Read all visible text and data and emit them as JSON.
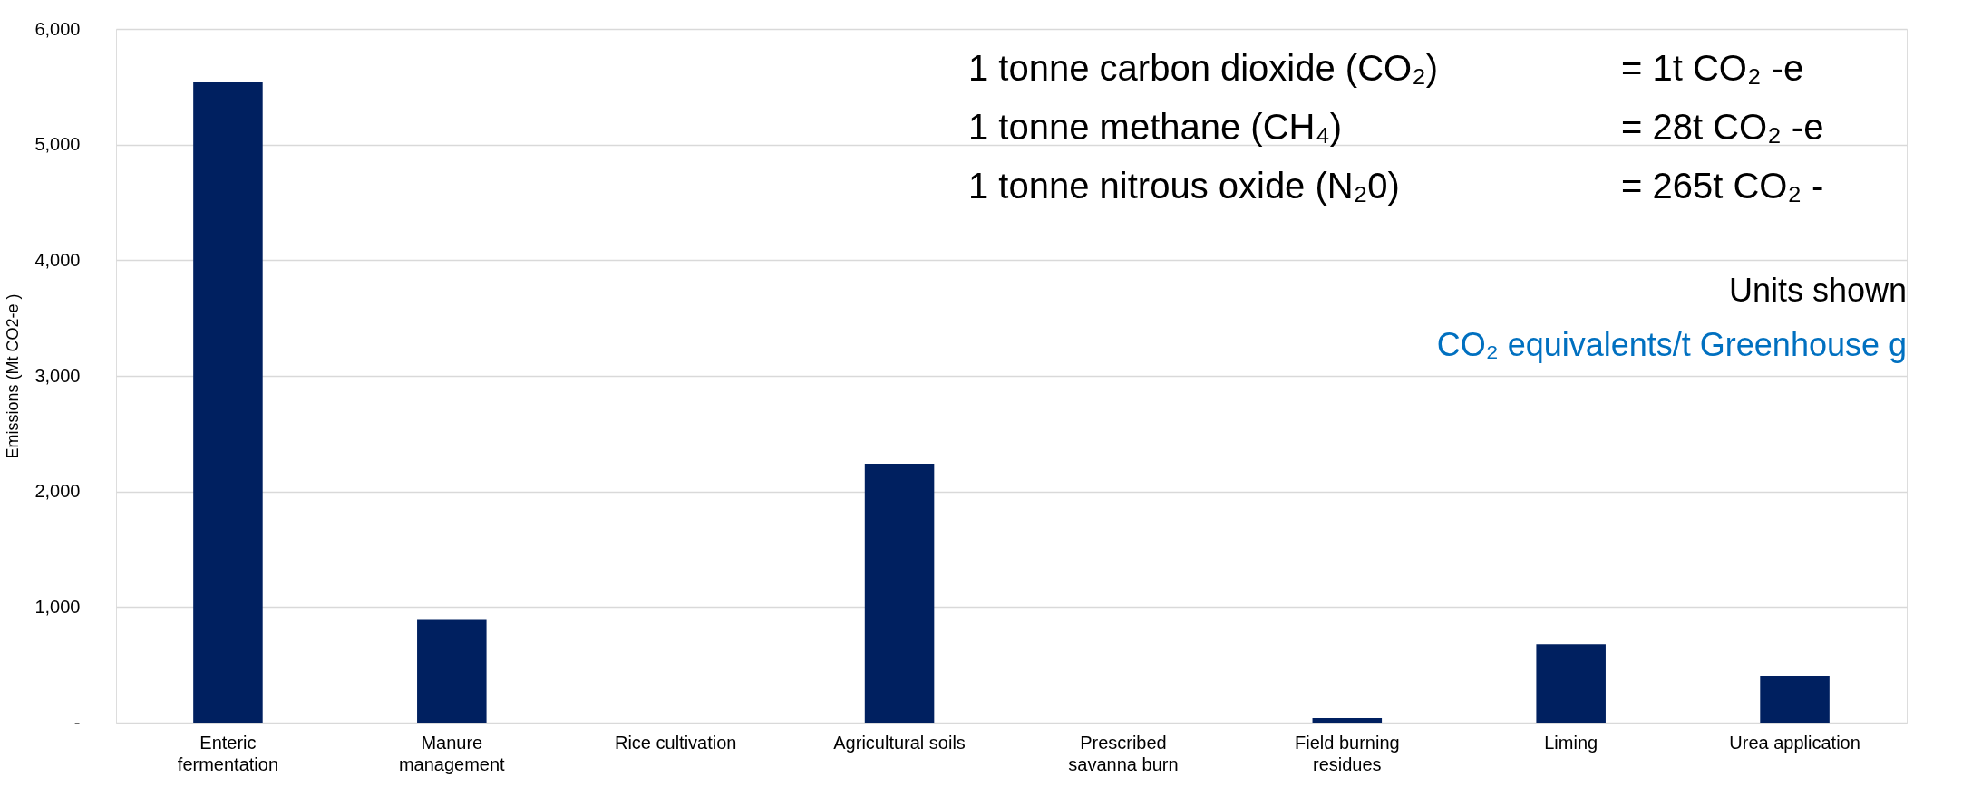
{
  "chart_data": {
    "type": "bar",
    "ylabel": "Emissions (Mt CO2-e )",
    "categories": [
      "Enteric\nfermentation",
      "Manure\nmanagement",
      "Rice cultivation",
      "Agricultural soils",
      "Prescribed\nsavanna burn",
      "Field burning\nresidues",
      "Liming",
      "Urea application"
    ],
    "values": [
      5540,
      890,
      0,
      2240,
      0,
      40,
      680,
      400
    ],
    "color": "#002060",
    "ylim": [
      0,
      6000
    ],
    "yticks": [
      {
        "value": 0,
        "label": "-"
      },
      {
        "value": 1000,
        "label": "1,000"
      },
      {
        "value": 2000,
        "label": "2,000"
      },
      {
        "value": 3000,
        "label": "3,000"
      },
      {
        "value": 4000,
        "label": "4,000"
      },
      {
        "value": 5000,
        "label": "5,000"
      },
      {
        "value": 6000,
        "label": "6,000"
      }
    ],
    "grid": "y",
    "annotations": [
      "1 tonne carbon dioxide (CO₂)",
      "= 1t CO₂ -e",
      "1 tonne methane (CH₄)",
      "= 28t CO₂ -e",
      "1 tonne nitrous oxide (N₂0)",
      "= 265t CO₂ -",
      "Units shown",
      "CO₂ equivalents/t Greenhouse g"
    ]
  }
}
